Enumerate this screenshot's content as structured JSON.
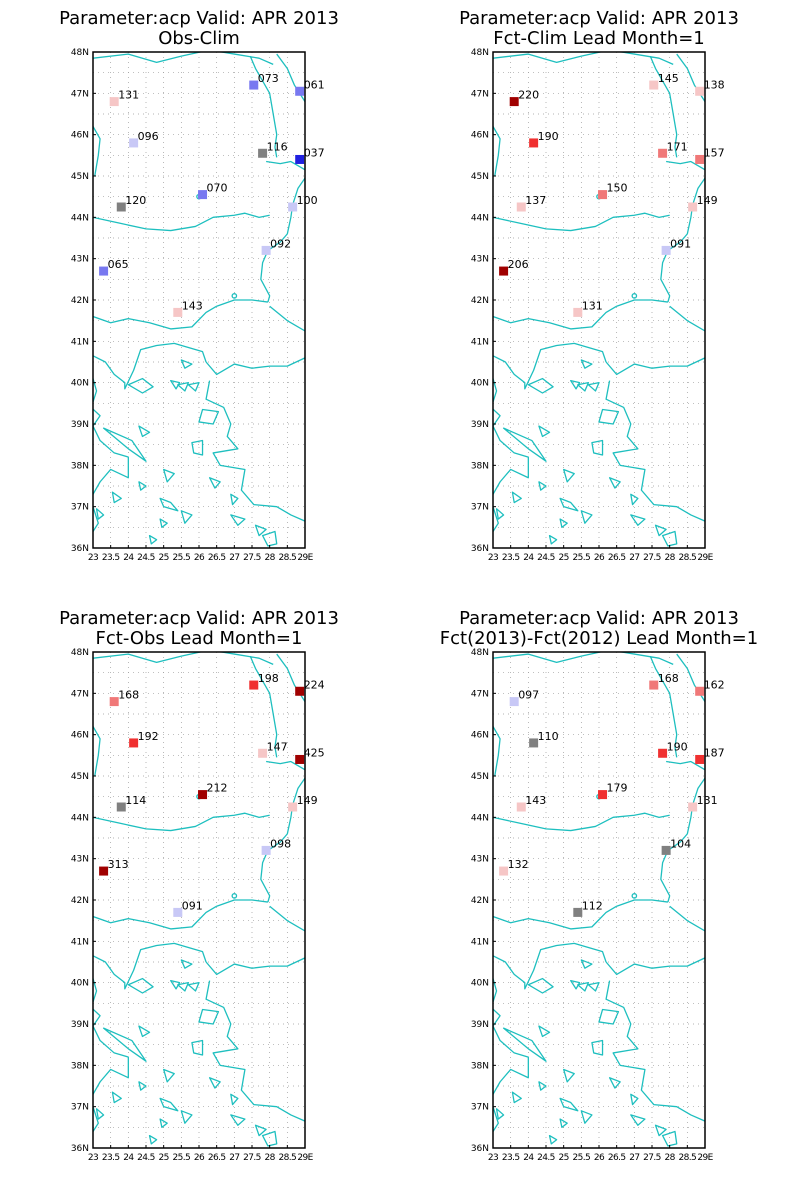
{
  "panels": [
    {
      "title_line1": "Parameter:acp Valid: APR 2013",
      "title_line2": "Obs-Clim",
      "stations": [
        {
          "label": "073",
          "lat": 47.2,
          "lon": 27.55,
          "color": "#7878f0"
        },
        {
          "label": "061",
          "lat": 47.05,
          "lon": 28.85,
          "color": "#7878f0"
        },
        {
          "label": "131",
          "lat": 46.8,
          "lon": 23.6,
          "color": "#f6c6c6"
        },
        {
          "label": "096",
          "lat": 45.8,
          "lon": 24.15,
          "color": "#c8c8f6"
        },
        {
          "label": "116",
          "lat": 45.55,
          "lon": 27.8,
          "color": "#808080"
        },
        {
          "label": "037",
          "lat": 45.4,
          "lon": 28.85,
          "color": "#2020e0"
        },
        {
          "label": "070",
          "lat": 44.55,
          "lon": 26.1,
          "color": "#7878f0"
        },
        {
          "label": "120",
          "lat": 44.25,
          "lon": 23.8,
          "color": "#808080"
        },
        {
          "label": "100",
          "lat": 44.25,
          "lon": 28.65,
          "color": "#c8c8f6"
        },
        {
          "label": "092",
          "lat": 43.2,
          "lon": 27.9,
          "color": "#c8c8f6"
        },
        {
          "label": "065",
          "lat": 42.7,
          "lon": 23.3,
          "color": "#7878f0"
        },
        {
          "label": "143",
          "lat": 41.7,
          "lon": 25.4,
          "color": "#f6c6c6"
        }
      ]
    },
    {
      "title_line1": "Parameter:acp Valid: APR 2013",
      "title_line2": "Fct-Clim Lead Month=1",
      "stations": [
        {
          "label": "145",
          "lat": 47.2,
          "lon": 27.55,
          "color": "#f6c6c6"
        },
        {
          "label": "138",
          "lat": 47.05,
          "lon": 28.85,
          "color": "#f6c6c6"
        },
        {
          "label": "220",
          "lat": 46.8,
          "lon": 23.6,
          "color": "#a00000"
        },
        {
          "label": "190",
          "lat": 45.8,
          "lon": 24.15,
          "color": "#f03030"
        },
        {
          "label": "171",
          "lat": 45.55,
          "lon": 27.8,
          "color": "#f07878"
        },
        {
          "label": "157",
          "lat": 45.4,
          "lon": 28.85,
          "color": "#f07878"
        },
        {
          "label": "150",
          "lat": 44.55,
          "lon": 26.1,
          "color": "#f07878"
        },
        {
          "label": "137",
          "lat": 44.25,
          "lon": 23.8,
          "color": "#f6c6c6"
        },
        {
          "label": "149",
          "lat": 44.25,
          "lon": 28.65,
          "color": "#f6c6c6"
        },
        {
          "label": "091",
          "lat": 43.2,
          "lon": 27.9,
          "color": "#c8c8f6"
        },
        {
          "label": "206",
          "lat": 42.7,
          "lon": 23.3,
          "color": "#a00000"
        },
        {
          "label": "131",
          "lat": 41.7,
          "lon": 25.4,
          "color": "#f6c6c6"
        }
      ]
    },
    {
      "title_line1": "Parameter:acp Valid: APR 2013",
      "title_line2": "Fct-Obs Lead Month=1",
      "stations": [
        {
          "label": "198",
          "lat": 47.2,
          "lon": 27.55,
          "color": "#f03030"
        },
        {
          "label": "224",
          "lat": 47.05,
          "lon": 28.85,
          "color": "#a00000"
        },
        {
          "label": "168",
          "lat": 46.8,
          "lon": 23.6,
          "color": "#f07878"
        },
        {
          "label": "192",
          "lat": 45.8,
          "lon": 24.15,
          "color": "#f03030"
        },
        {
          "label": "147",
          "lat": 45.55,
          "lon": 27.8,
          "color": "#f6c6c6"
        },
        {
          "label": "425",
          "lat": 45.4,
          "lon": 28.85,
          "color": "#a00000"
        },
        {
          "label": "212",
          "lat": 44.55,
          "lon": 26.1,
          "color": "#a00000"
        },
        {
          "label": "114",
          "lat": 44.25,
          "lon": 23.8,
          "color": "#808080"
        },
        {
          "label": "149",
          "lat": 44.25,
          "lon": 28.65,
          "color": "#f6c6c6"
        },
        {
          "label": "098",
          "lat": 43.2,
          "lon": 27.9,
          "color": "#c8c8f6"
        },
        {
          "label": "313",
          "lat": 42.7,
          "lon": 23.3,
          "color": "#a00000"
        },
        {
          "label": "091",
          "lat": 41.7,
          "lon": 25.4,
          "color": "#c8c8f6"
        }
      ]
    },
    {
      "title_line1": "Parameter:acp Valid: APR 2013",
      "title_line2": "Fct(2013)-Fct(2012) Lead Month=1",
      "stations": [
        {
          "label": "168",
          "lat": 47.2,
          "lon": 27.55,
          "color": "#f07878"
        },
        {
          "label": "162",
          "lat": 47.05,
          "lon": 28.85,
          "color": "#f07878"
        },
        {
          "label": "097",
          "lat": 46.8,
          "lon": 23.6,
          "color": "#c8c8f6"
        },
        {
          "label": "110",
          "lat": 45.8,
          "lon": 24.15,
          "color": "#808080"
        },
        {
          "label": "190",
          "lat": 45.55,
          "lon": 27.8,
          "color": "#f03030"
        },
        {
          "label": "187",
          "lat": 45.4,
          "lon": 28.85,
          "color": "#f03030"
        },
        {
          "label": "179",
          "lat": 44.55,
          "lon": 26.1,
          "color": "#f03030"
        },
        {
          "label": "143",
          "lat": 44.25,
          "lon": 23.8,
          "color": "#f6c6c6"
        },
        {
          "label": "131",
          "lat": 44.25,
          "lon": 28.65,
          "color": "#f6c6c6"
        },
        {
          "label": "104",
          "lat": 43.2,
          "lon": 27.9,
          "color": "#808080"
        },
        {
          "label": "132",
          "lat": 42.7,
          "lon": 23.3,
          "color": "#f6c6c6"
        },
        {
          "label": "112",
          "lat": 41.7,
          "lon": 25.4,
          "color": "#808080"
        }
      ]
    }
  ],
  "lat_ticks": [
    "36N",
    "37N",
    "38N",
    "39N",
    "40N",
    "41N",
    "42N",
    "43N",
    "44N",
    "45N",
    "46N",
    "47N",
    "48N"
  ],
  "lon_ticks": [
    "23",
    "23.5",
    "24",
    "24.5",
    "25",
    "25.5",
    "26",
    "26.5",
    "27",
    "27.5",
    "28",
    "28.5",
    "29E"
  ],
  "colors": {
    "coast": "#1ebfbf",
    "grid": "#9a9a9a",
    "frame": "#000000"
  }
}
